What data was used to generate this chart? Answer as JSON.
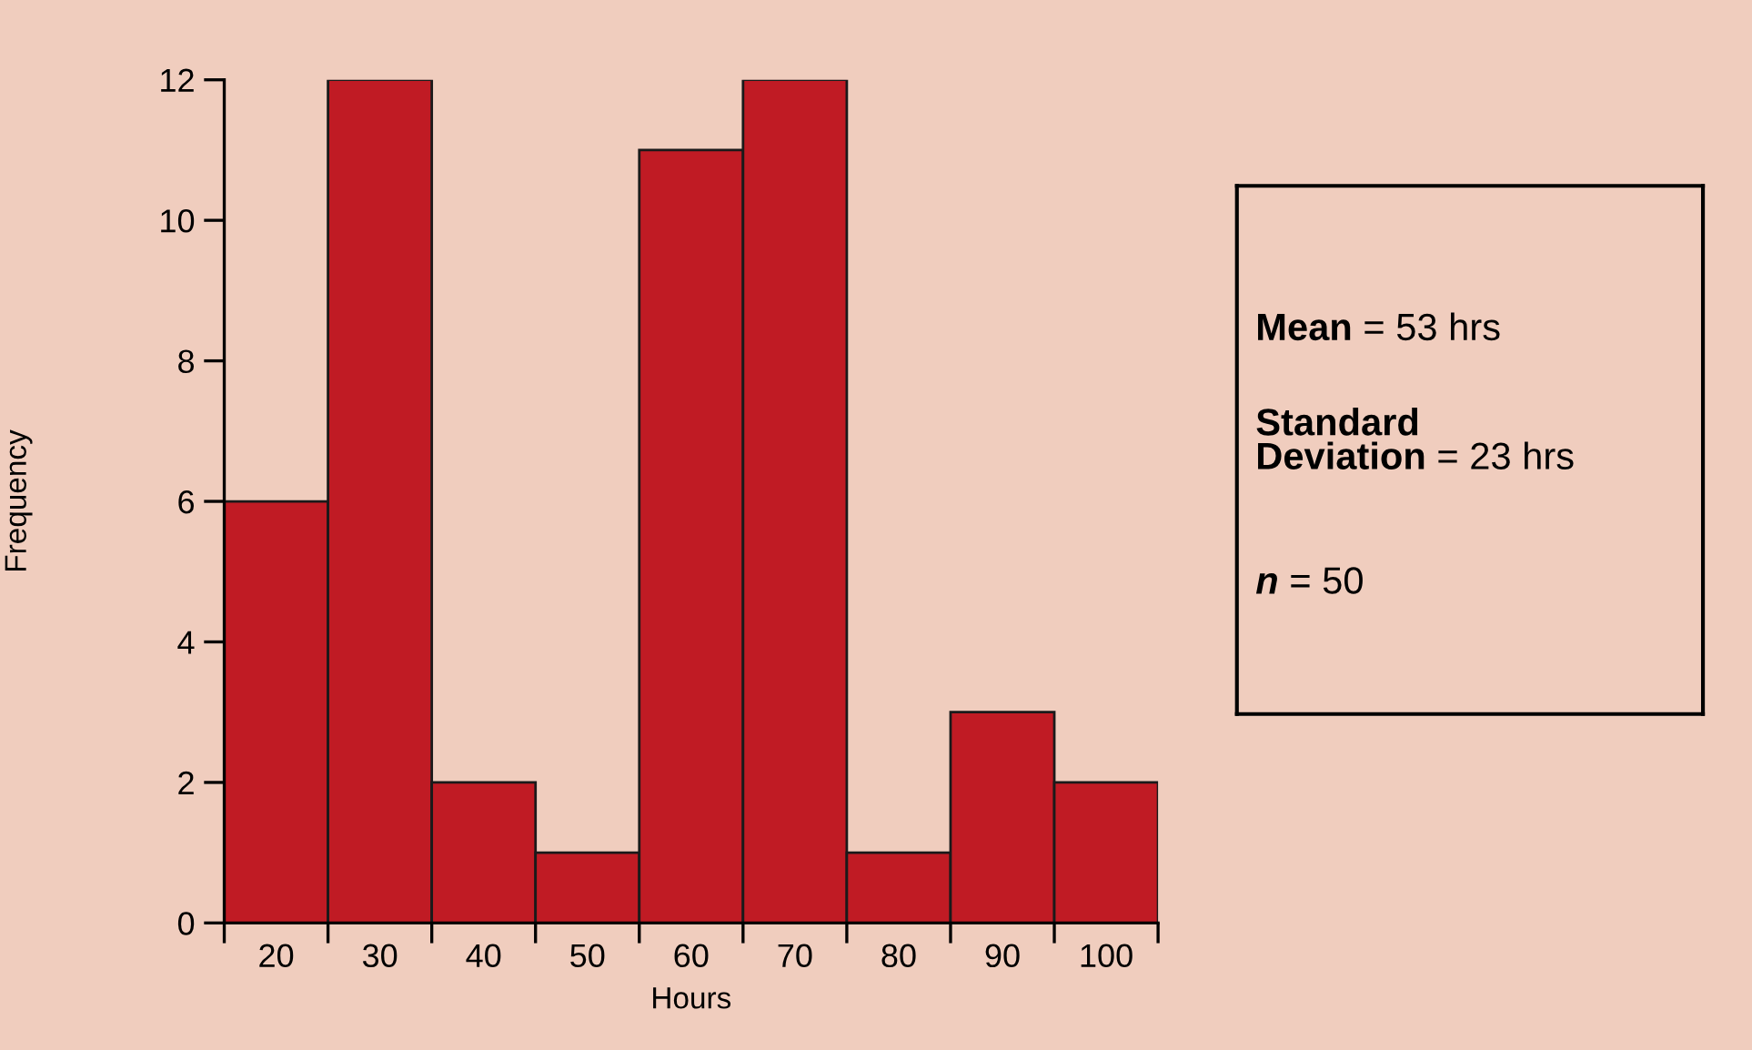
{
  "chart_data": {
    "type": "histogram",
    "xlabel": "Hours",
    "ylabel": "Frequency",
    "bins": [
      15,
      25,
      35,
      45,
      55,
      65,
      75,
      85,
      95,
      105
    ],
    "values": [
      6,
      12,
      2,
      1,
      11,
      12,
      1,
      3,
      2
    ],
    "color": "#c01b24",
    "xlim": [
      15,
      105
    ],
    "xticks": [
      {
        "value": 15,
        "label": null
      },
      {
        "value": 25,
        "label": null
      },
      {
        "value": 35,
        "label": null
      },
      {
        "value": 45,
        "label": null
      },
      {
        "value": 55,
        "label": null
      },
      {
        "value": 65,
        "label": null
      },
      {
        "value": 75,
        "label": null
      },
      {
        "value": 85,
        "label": null
      },
      {
        "value": 95,
        "label": null
      },
      {
        "value": 105,
        "label": null
      },
      {
        "value": 20,
        "label": "20"
      },
      {
        "value": 30,
        "label": "30"
      },
      {
        "value": 40,
        "label": "40"
      },
      {
        "value": 50,
        "label": "50"
      },
      {
        "value": 60,
        "label": "60"
      },
      {
        "value": 70,
        "label": "70"
      },
      {
        "value": 80,
        "label": "80"
      },
      {
        "value": 90,
        "label": "90"
      },
      {
        "value": 100,
        "label": "100"
      }
    ],
    "ylim": [
      0,
      12
    ],
    "yticks": [
      0,
      2,
      4,
      6,
      8,
      10,
      12
    ],
    "grid": false,
    "annotations": [
      "Mean = 53 hrs",
      "Standard\nDeviation = 23 hrs",
      "n = 50"
    ]
  }
}
